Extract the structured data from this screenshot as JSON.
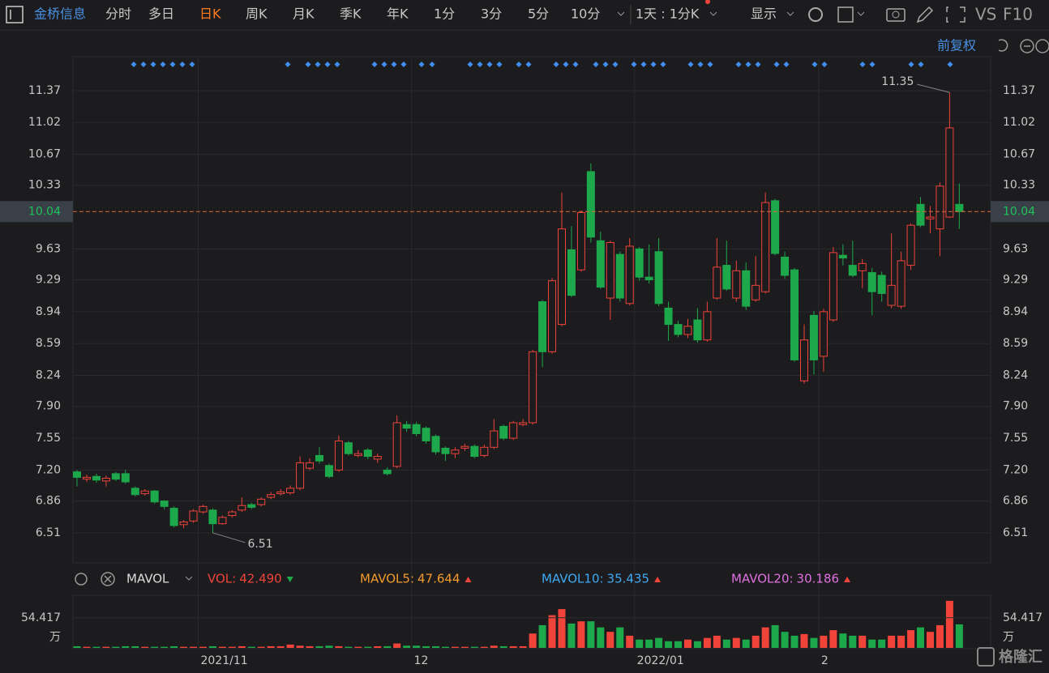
{
  "toolbar": {
    "stock": "金桥信息",
    "tabs": [
      "分时",
      "多日",
      "日K",
      "周K",
      "月K",
      "季K",
      "年K",
      "1分",
      "3分",
      "5分",
      "10分"
    ],
    "active": "日K",
    "period": "1天 : 1分K",
    "display": "显示",
    "vs": "VS",
    "f10": "F10"
  },
  "adjust": "前复权",
  "watermark": "格隆汇",
  "chart_data": {
    "type": "candlestick",
    "categories": [
      null,
      null,
      null,
      null,
      null,
      null,
      null,
      null,
      null,
      null,
      null,
      null,
      null,
      "2021/11",
      null,
      null,
      null,
      null,
      null,
      null,
      null,
      null,
      null,
      null,
      null,
      null,
      null,
      null,
      null,
      null,
      null,
      null,
      null,
      null,
      null,
      "12",
      null,
      null,
      null,
      null,
      null,
      null,
      null,
      null,
      null,
      null,
      null,
      null,
      null,
      null,
      null,
      null,
      null,
      null,
      null,
      null,
      null,
      null,
      "2022/01",
      null,
      null,
      null,
      null,
      null,
      null,
      null,
      null,
      null,
      null,
      null,
      null,
      null,
      null,
      null,
      null,
      null,
      null,
      "2",
      null,
      null,
      null,
      null,
      null,
      null,
      null,
      null,
      null,
      null,
      null,
      null,
      null,
      null
    ],
    "open": [
      7.18,
      7.1,
      7.13,
      7.08,
      7.16,
      7.16,
      7.0,
      6.94,
      6.97,
      6.86,
      6.78,
      6.6,
      6.64,
      6.74,
      6.76,
      6.61,
      6.7,
      6.76,
      6.82,
      6.82,
      6.9,
      6.94,
      6.95,
      7.0,
      7.22,
      7.36,
      7.25,
      7.2,
      7.5,
      7.36,
      7.42,
      7.32,
      7.2,
      7.24,
      7.7,
      7.7,
      7.66,
      7.57,
      7.44,
      7.38,
      7.44,
      7.46,
      7.36,
      7.45,
      7.68,
      7.55,
      7.7,
      7.72,
      9.05,
      8.5,
      8.8,
      9.62,
      9.4,
      10.48,
      9.72,
      9.09,
      9.57,
      9.03,
      9.63,
      9.32,
      9.6,
      8.98,
      8.8,
      8.69,
      8.85,
      8.63,
      9.09,
      9.45,
      9.09,
      9.39,
      9.07,
      9.16,
      10.16,
      9.54,
      9.4,
      8.18,
      8.9,
      8.45,
      8.85,
      9.56,
      9.45,
      9.39,
      9.37,
      9.34,
      9.01,
      9.0,
      9.45,
      10.12,
      9.96,
      9.85,
      9.98,
      10.12
    ],
    "high": [
      7.2,
      7.15,
      7.16,
      7.14,
      7.18,
      7.2,
      7.02,
      6.99,
      6.98,
      6.87,
      6.8,
      6.65,
      6.77,
      6.82,
      6.78,
      6.7,
      6.76,
      6.9,
      6.84,
      6.9,
      6.96,
      6.99,
      7.03,
      7.35,
      7.33,
      7.45,
      7.27,
      7.58,
      7.52,
      7.42,
      7.44,
      7.38,
      7.23,
      7.8,
      7.74,
      7.73,
      7.68,
      7.59,
      7.46,
      7.45,
      7.49,
      7.48,
      7.48,
      7.76,
      7.7,
      7.74,
      7.76,
      8.52,
      9.07,
      9.31,
      10.25,
      9.88,
      10.05,
      10.57,
      9.82,
      9.72,
      9.6,
      9.75,
      9.65,
      9.68,
      9.75,
      9.05,
      8.84,
      8.86,
      8.98,
      9.05,
      9.75,
      9.72,
      9.5,
      9.48,
      9.55,
      10.25,
      10.18,
      9.6,
      9.42,
      8.8,
      8.95,
      8.97,
      9.65,
      9.68,
      9.72,
      9.52,
      9.42,
      9.38,
      9.8,
      9.6,
      9.91,
      10.2,
      10.1,
      10.36,
      11.35,
      10.35
    ],
    "low": [
      7.02,
      7.07,
      7.06,
      7.02,
      7.08,
      7.05,
      6.91,
      6.92,
      6.83,
      6.77,
      6.57,
      6.56,
      6.62,
      6.72,
      6.51,
      6.6,
      6.68,
      6.74,
      6.77,
      6.8,
      6.88,
      6.92,
      6.93,
      6.98,
      7.2,
      7.27,
      7.11,
      7.18,
      7.36,
      7.34,
      7.32,
      7.28,
      7.14,
      7.22,
      7.62,
      7.57,
      7.49,
      7.37,
      7.3,
      7.33,
      7.41,
      7.33,
      7.34,
      7.43,
      7.53,
      7.53,
      7.68,
      7.7,
      8.33,
      8.48,
      8.78,
      9.1,
      9.38,
      9.7,
      9.19,
      8.85,
      9.05,
      9.01,
      9.28,
      9.25,
      9.0,
      8.62,
      8.66,
      8.65,
      8.6,
      8.61,
      9.07,
      9.17,
      9.05,
      8.96,
      9.05,
      9.14,
      9.56,
      9.3,
      8.39,
      8.15,
      8.25,
      8.28,
      8.83,
      9.45,
      9.32,
      9.2,
      8.9,
      9.05,
      8.98,
      8.97,
      9.4,
      9.87,
      9.8,
      9.55,
      9.97,
      9.85
    ],
    "close": [
      7.12,
      7.12,
      7.09,
      7.11,
      7.1,
      7.07,
      6.93,
      6.97,
      6.85,
      6.8,
      6.59,
      6.63,
      6.75,
      6.8,
      6.61,
      6.68,
      6.74,
      6.81,
      6.79,
      6.88,
      6.93,
      6.96,
      7.0,
      7.28,
      7.28,
      7.3,
      7.13,
      7.52,
      7.38,
      7.38,
      7.35,
      7.35,
      7.16,
      7.72,
      7.66,
      7.6,
      7.52,
      7.4,
      7.38,
      7.42,
      7.46,
      7.35,
      7.45,
      7.63,
      7.55,
      7.72,
      7.72,
      8.5,
      8.5,
      9.28,
      9.85,
      9.12,
      10.03,
      9.76,
      9.21,
      9.7,
      9.09,
      9.66,
      9.32,
      9.29,
      9.03,
      8.8,
      8.69,
      8.78,
      8.63,
      8.94,
      9.43,
      9.19,
      9.39,
      9.0,
      9.23,
      10.14,
      9.58,
      9.34,
      8.41,
      8.63,
      8.41,
      8.94,
      9.59,
      9.53,
      9.34,
      9.47,
      9.16,
      9.14,
      9.23,
      9.5,
      9.89,
      9.89,
      9.98,
      10.32,
      10.96,
      10.04
    ],
    "volume": [
      3,
      2,
      2,
      2,
      2,
      3,
      3,
      2,
      2,
      2,
      3,
      2,
      2,
      2,
      3,
      2,
      2,
      3,
      2,
      2,
      3,
      3,
      6,
      4,
      3,
      3,
      4,
      3,
      2,
      2,
      2,
      3,
      3,
      8,
      4,
      4,
      3,
      3,
      2,
      2,
      2,
      2,
      2,
      4,
      3,
      3,
      3,
      26,
      41,
      59,
      70,
      44,
      48,
      48,
      37,
      29,
      37,
      22,
      15,
      15,
      18,
      12,
      12,
      15,
      12,
      18,
      22,
      15,
      18,
      15,
      22,
      37,
      41,
      29,
      22,
      25,
      18,
      22,
      32,
      26,
      22,
      22,
      15,
      15,
      22,
      22,
      32,
      37,
      29,
      41,
      85,
      42.49
    ],
    "up_color": "#f0433a",
    "down_color": "#1ea84c",
    "ylim": [
      6.18,
      11.52
    ],
    "yticks": [
      11.37,
      11.02,
      10.67,
      10.33,
      9.63,
      9.29,
      8.94,
      8.59,
      8.24,
      {
        "value": 7.9,
        "label": "7.90"
      },
      7.55,
      {
        "value": 7.2,
        "label": "7.20"
      },
      6.86,
      6.51
    ],
    "last_price": 10.04,
    "max_label": 11.35,
    "min_label": 6.51,
    "vol_ylim": [
      0,
      95
    ],
    "vol_yticks": [
      54.417
    ],
    "vol_unit": "万",
    "vol_indicator": "MAVOL",
    "vol_legend": [
      {
        "label": "VOL:",
        "value": "42.490",
        "color": "#f0433a",
        "trend": "down"
      },
      {
        "label": "MAVOL5:",
        "value": "47.644",
        "color": "#f39a2c",
        "trend": "up"
      },
      {
        "label": "MAVOL10:",
        "value": "35.435",
        "color": "#3fa9f5",
        "trend": "up"
      },
      {
        "label": "MAVOL20:",
        "value": "30.186",
        "color": "#e070e0",
        "trend": "up"
      }
    ]
  }
}
